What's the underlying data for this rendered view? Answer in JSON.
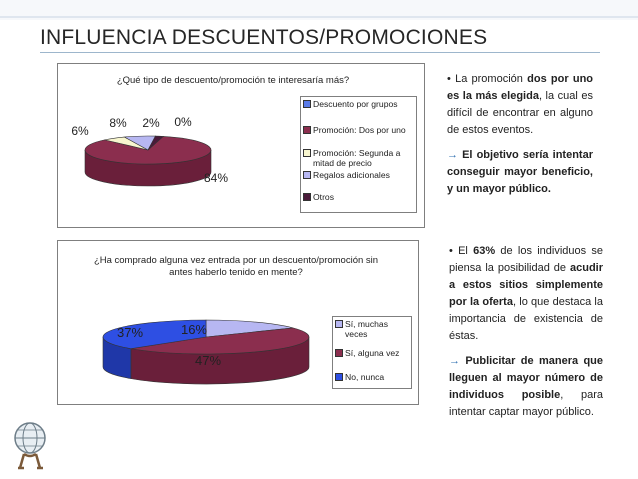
{
  "slide_title": "INFLUENCIA DESCUENTOS/PROMOCIONES",
  "colors": {
    "blue": "#5a7be8",
    "maroon": "#8b2e4e",
    "cream": "#f8f6cf",
    "lavender": "#b7b7f2",
    "darkblue": "#2e4fe3"
  },
  "chart_data": [
    {
      "type": "pie",
      "title": "¿Qué tipo de descuento/promoción te interesaría más?",
      "categories": [
        "Descuento por grupos",
        "Promoción: Dos por uno",
        "Promoción: Segunda a mitad de precio",
        "Regalos adicionales",
        "Otros"
      ],
      "values": [
        0,
        84,
        6,
        8,
        2
      ],
      "value_labels": [
        "0%",
        "84%",
        "6%",
        "8%",
        "2%"
      ],
      "legend_position": "right"
    },
    {
      "type": "pie",
      "title": "¿Ha comprado alguna vez entrada por un descuento/promoción sin antes haberlo tenido en mente?",
      "categories": [
        "Sí, muchas veces",
        "Sí, alguna vez",
        "No, nunca"
      ],
      "values": [
        16,
        47,
        37
      ],
      "value_labels": [
        "16%",
        "47%",
        "37%"
      ],
      "legend_position": "right"
    }
  ],
  "notes": {
    "n1": {
      "b1": "• La promoción ",
      "b1_bold": "dos por uno es la más elegida",
      "b1_rest": ", la cual es difícil de encontrar en alguno de estos eventos.",
      "b2_arrow": "→",
      "b2_bold": " El objetivo sería intentar conseguir mayor beneficio, y un mayor público."
    },
    "n2": {
      "b1": "• El ",
      "b1_bold1": "63%",
      "b1_mid": " de los individuos se piensa la posibilidad de ",
      "b1_bold2": "acudir a estos sitios simplemente por la oferta",
      "b1_rest": ", lo que destaca la importancia de existencia de éstas.",
      "b2_arrow": "→",
      "b2_bold": " Publicitar de manera que lleguen al mayor número de individuos posible",
      "b2_rest": ", para intentar captar mayor público."
    }
  }
}
